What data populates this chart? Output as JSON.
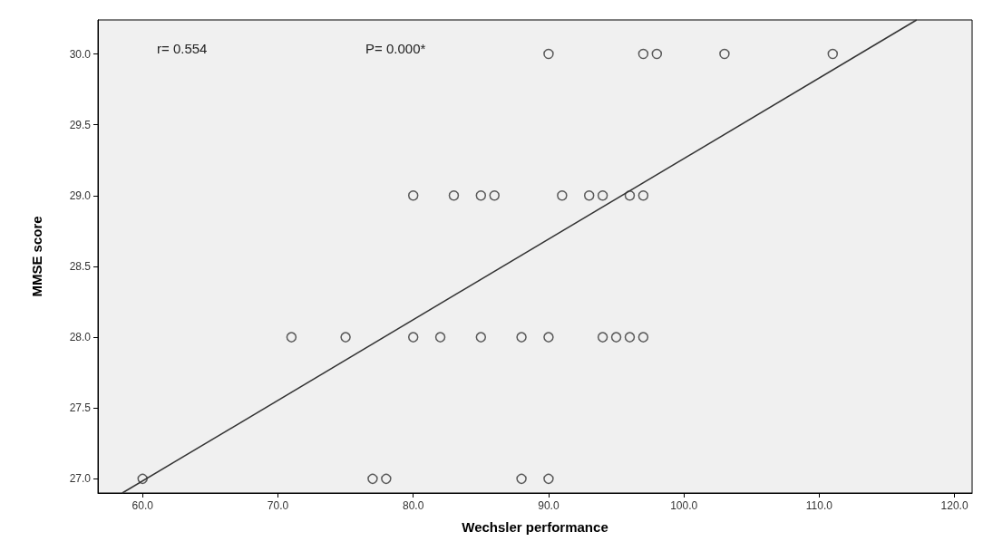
{
  "chart_data": {
    "type": "scatter",
    "xlabel": "Wechsler performance",
    "ylabel": "MMSE score",
    "annotations": [
      "r= 0.554",
      "P= 0.000*"
    ],
    "xlim": [
      56.7,
      121.3
    ],
    "ylim": [
      26.9,
      30.24
    ],
    "xticks": [
      {
        "value": 60,
        "label": "60.0"
      },
      {
        "value": 70,
        "label": "70.0"
      },
      {
        "value": 80,
        "label": "80.0"
      },
      {
        "value": 90,
        "label": "90.0"
      },
      {
        "value": 100,
        "label": "100.0"
      },
      {
        "value": 110,
        "label": "110.0"
      },
      {
        "value": 120,
        "label": "120.0"
      }
    ],
    "yticks": [
      {
        "value": 27,
        "label": "27.0"
      },
      {
        "value": 27.5,
        "label": "27.5"
      },
      {
        "value": 28,
        "label": "28.0"
      },
      {
        "value": 28.5,
        "label": "28.5"
      },
      {
        "value": 29,
        "label": "29.0"
      },
      {
        "value": 29.5,
        "label": "29.5"
      },
      {
        "value": 30,
        "label": "30.0"
      }
    ],
    "grid": false,
    "series": [
      {
        "marker": "circle",
        "color": "#333333",
        "x": [
          90,
          97,
          98,
          103,
          111,
          80,
          83,
          85,
          86,
          91,
          93,
          94,
          96,
          97,
          71,
          75,
          80,
          82,
          85,
          88,
          90,
          94,
          95,
          96,
          97,
          60,
          77,
          78,
          88,
          90
        ],
        "values": [
          30,
          30,
          30,
          30,
          30,
          29,
          29,
          29,
          29,
          29,
          29,
          29,
          29,
          29,
          28,
          28,
          28,
          28,
          28,
          28,
          28,
          28,
          28,
          28,
          28,
          27,
          27,
          27,
          27,
          27
        ]
      },
      {
        "type": "line",
        "marker": "none",
        "color": "#333333",
        "x": [
          58.5,
          117.2
        ],
        "values": [
          26.9,
          30.24
        ]
      }
    ]
  }
}
